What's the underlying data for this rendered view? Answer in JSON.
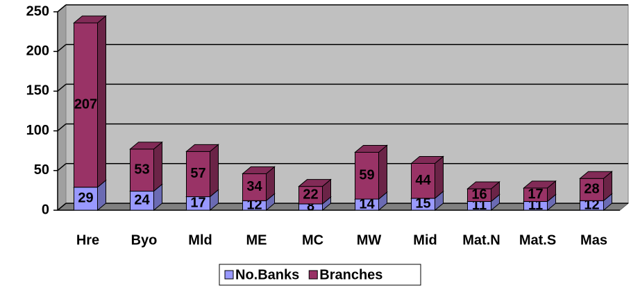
{
  "chart_data": {
    "type": "bar",
    "stacked": true,
    "categories": [
      "Hre",
      "Byo",
      "Mld",
      "ME",
      "MC",
      "MW",
      "Mid",
      "Mat.N",
      "Mat.S",
      "Mas"
    ],
    "series": [
      {
        "name": "No.Banks",
        "color": "#9999ff",
        "values": [
          29,
          24,
          17,
          12,
          8,
          14,
          15,
          11,
          11,
          12
        ]
      },
      {
        "name": "Branches",
        "color": "#993366",
        "values": [
          207,
          53,
          57,
          34,
          22,
          59,
          44,
          16,
          17,
          28
        ]
      }
    ],
    "ylim": [
      0,
      250
    ],
    "yticks": [
      0,
      50,
      100,
      150,
      200,
      250
    ],
    "grid": true,
    "legend": "bottom"
  }
}
